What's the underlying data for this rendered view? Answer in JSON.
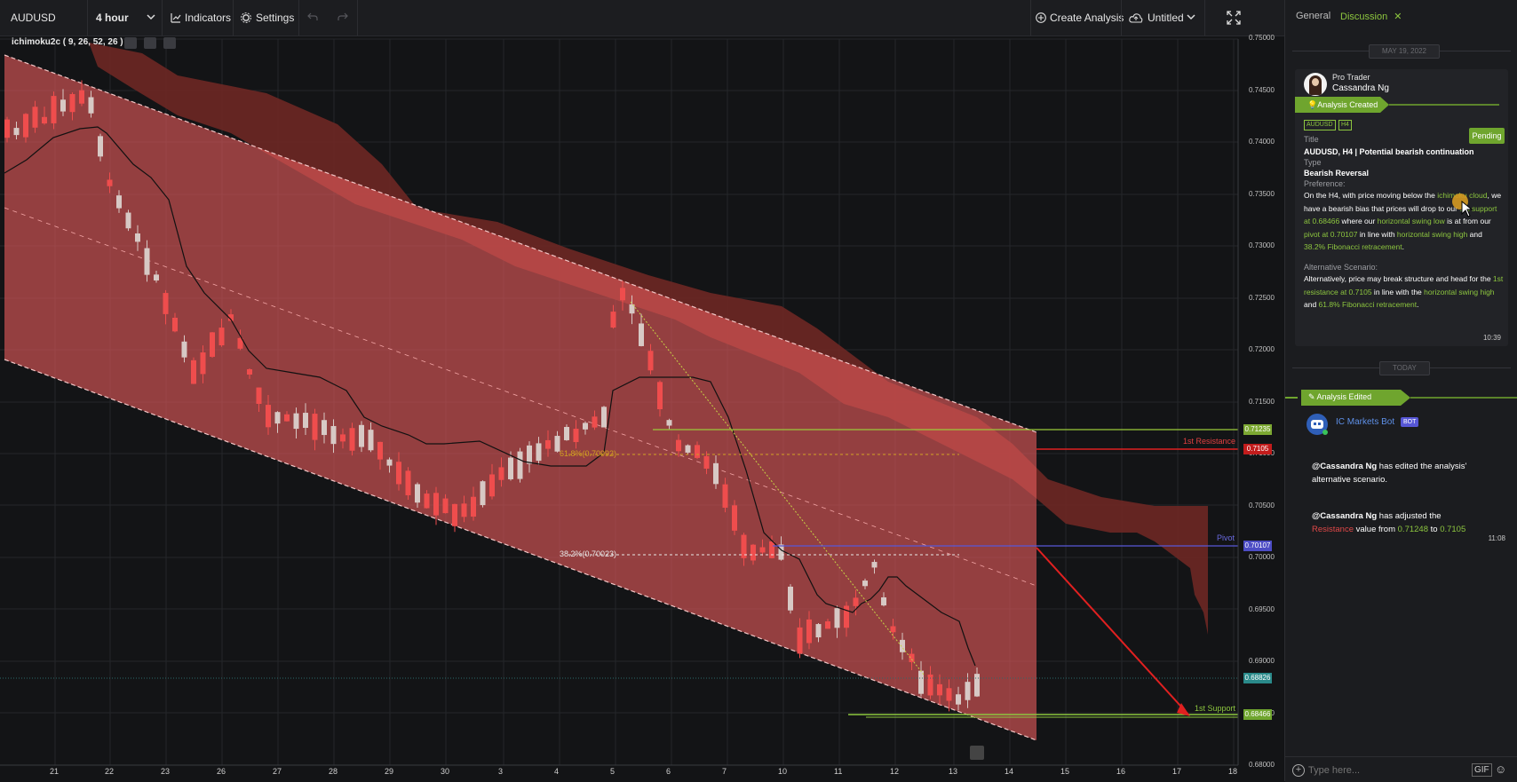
{
  "toolbar": {
    "symbol": "AUDUSD",
    "timeframe": "4 hour",
    "indicators_label": "Indicators",
    "settings_label": "Settings",
    "create_analysis_label": "Create Analysis",
    "untitled_label": "Untitled"
  },
  "indicator": {
    "label": "ichimoku2c ( 9, 26, 52, 26 )"
  },
  "price_axis": {
    "ticks": [
      "0.75000",
      "0.74500",
      "0.74000",
      "0.73500",
      "0.73000",
      "0.72500",
      "0.72000",
      "0.71500",
      "0.71000",
      "0.70500",
      "0.70000",
      "0.69500",
      "0.69000",
      "0.68500",
      "0.68000"
    ],
    "tags": {
      "upper_green": "0.71235",
      "resistance": "0.7105",
      "pivot": "0.70107",
      "current": "0.68826",
      "support": "0.68466"
    }
  },
  "time_axis": {
    "ticks": [
      "21",
      "22",
      "23",
      "26",
      "27",
      "28",
      "29",
      "30",
      "3",
      "4",
      "5",
      "6",
      "7",
      "10",
      "11",
      "12",
      "13",
      "14",
      "15",
      "16",
      "17",
      "18"
    ]
  },
  "chart_labels": {
    "resistance": "1st Resistance",
    "pivot": "Pivot",
    "support": "1st Support",
    "fib_618": "61.8%(0.70992)",
    "fib_382": "38.2%(0.70023)"
  },
  "colors": {
    "channel_fill": "#e35a5a",
    "cloud": "#8a2e2a",
    "accent_green": "#8dc63f",
    "resistance_red": "#e02020",
    "pivot_blue": "#6a6ae0"
  },
  "sidebar": {
    "tab_general": "General",
    "tab_discussion": "Discussion",
    "date_1": "MAY 19, 2022",
    "date_2": "TODAY",
    "author_role": "Pro Trader",
    "author_name": "Cassandra Ng",
    "analysis_created": "Analysis Created",
    "symbol_badge": "AUDUSD",
    "tf_badge": "H4",
    "status": "Pending",
    "title_label": "Title",
    "title_value": "AUDUSD, H4 | Potential bearish continuation",
    "type_label": "Type",
    "type_value": "Bearish Reversal",
    "preference_label": "Preference:",
    "pref_1": "On the H4, with price moving below the ",
    "pref_2": "ichimoku cloud",
    "pref_3": ", we have a bearish bias that prices will drop to our ",
    "pref_4": "1st support at 0.68466",
    "pref_5": " where our ",
    "pref_6": "horizontal swing low",
    "pref_7": " is at from our ",
    "pref_8": "pivot at 0.70107",
    "pref_9": " in line with ",
    "pref_10": "horizontal swing high",
    "pref_11": " and ",
    "pref_12": "38.2% Fibonacci retracement",
    "pref_13": ".",
    "alt_label": "Alternative Scenario:",
    "alt_1": "Alternatively, price may break structure and head for the ",
    "alt_2": "1st resistance at 0.7105",
    "alt_3": " in line with  the ",
    "alt_4": "horizontal swing high",
    "alt_5": " and ",
    "alt_6": "61.8% Fibonacci retracement",
    "alt_7": ".",
    "time_1": "10:39",
    "analysis_edited": "Analysis Edited",
    "bot_name": "IC Markets Bot",
    "bot_badge": "BOT",
    "msg1_user": "@Cassandra Ng",
    "msg1_text": " has edited the analysis' alternative scenario.",
    "msg2_user": "@Cassandra Ng",
    "msg2_a": "  has adjusted the ",
    "msg2_b": "Resistance",
    "msg2_c": " value from ",
    "msg2_d": "0.71248",
    "msg2_e": " to ",
    "msg2_f": "0.7105",
    "time_2": "11:08",
    "input_placeholder": "Type here...",
    "gif_label": "GIF"
  }
}
